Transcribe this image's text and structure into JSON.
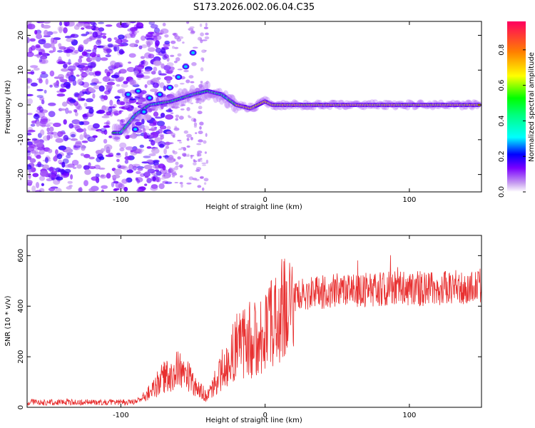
{
  "title": "S173.2026.002.06.04.C35",
  "chart_data": [
    {
      "type": "heatmap",
      "title": "S173.2026.002.06.04.C35",
      "xlabel": "Height of straight line (km)",
      "ylabel": "Frequency (Hz)",
      "xlim": [
        -165,
        150
      ],
      "ylim": [
        -25,
        24
      ],
      "xticks": [
        -100,
        0,
        100
      ],
      "yticks": [
        -20,
        -10,
        0,
        10,
        20
      ],
      "colorbar": {
        "label": "Normalized spectral amplitude",
        "range": [
          0,
          0.96
        ],
        "ticks": [
          0.0,
          0.2,
          0.4,
          0.6,
          0.8
        ]
      },
      "ridge": [
        {
          "x": -100,
          "y": -8
        },
        {
          "x": -90,
          "y": -3
        },
        {
          "x": -80,
          "y": 0
        },
        {
          "x": -65,
          "y": 1
        },
        {
          "x": -50,
          "y": 3
        },
        {
          "x": -40,
          "y": 4
        },
        {
          "x": -30,
          "y": 3
        },
        {
          "x": -20,
          "y": 0
        },
        {
          "x": -10,
          "y": -1
        },
        {
          "x": -5,
          "y": 0
        },
        {
          "x": 0,
          "y": 1
        },
        {
          "x": 5,
          "y": 0
        },
        {
          "x": 20,
          "y": 0
        },
        {
          "x": 60,
          "y": 0
        },
        {
          "x": 100,
          "y": 0
        },
        {
          "x": 148,
          "y": 0
        }
      ]
    },
    {
      "type": "line",
      "title": "",
      "xlabel": "Height of straight line (km)",
      "ylabel": "SNR (10 * v/v)",
      "xlim": [
        -165,
        150
      ],
      "ylim": [
        0,
        680
      ],
      "xticks": [
        -100,
        0,
        100
      ],
      "yticks": [
        0,
        200,
        400,
        600
      ],
      "color": "#e83030",
      "envelope": [
        {
          "x": -165,
          "y": 20
        },
        {
          "x": -90,
          "y": 20
        },
        {
          "x": -80,
          "y": 60
        },
        {
          "x": -70,
          "y": 120
        },
        {
          "x": -60,
          "y": 150
        },
        {
          "x": -50,
          "y": 100
        },
        {
          "x": -40,
          "y": 40
        },
        {
          "x": -30,
          "y": 150
        },
        {
          "x": -20,
          "y": 240
        },
        {
          "x": -10,
          "y": 260
        },
        {
          "x": 0,
          "y": 300
        },
        {
          "x": 10,
          "y": 370
        },
        {
          "x": 20,
          "y": 430
        },
        {
          "x": 40,
          "y": 460
        },
        {
          "x": 60,
          "y": 460
        },
        {
          "x": 80,
          "y": 470
        },
        {
          "x": 100,
          "y": 470
        },
        {
          "x": 120,
          "y": 470
        },
        {
          "x": 150,
          "y": 480
        }
      ]
    }
  ]
}
